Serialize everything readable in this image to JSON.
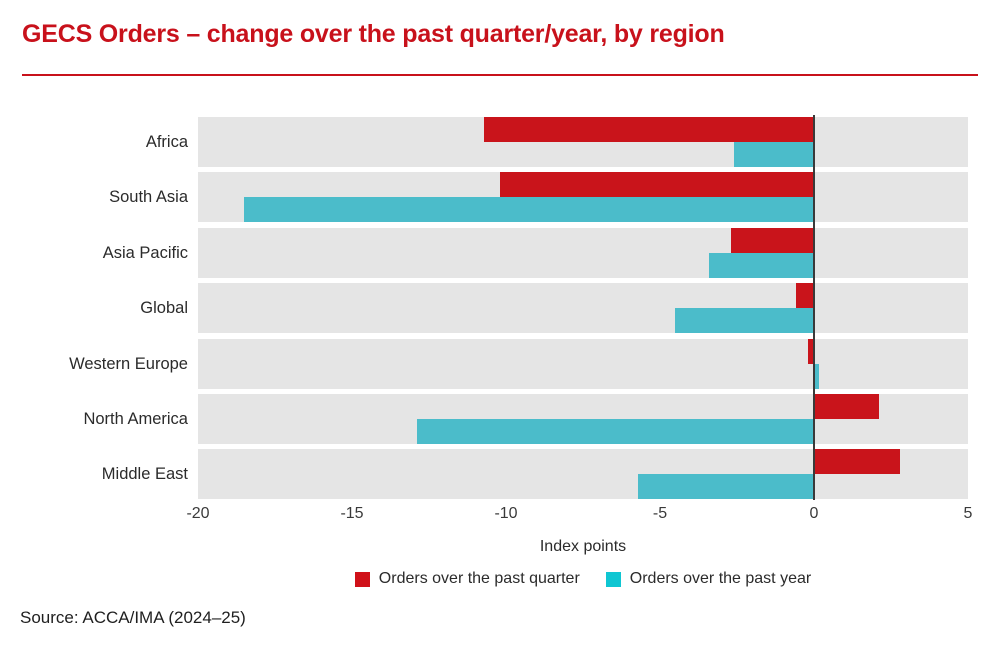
{
  "title": "GECS Orders – change over the past quarter/year, by region",
  "source": "Source: ACCA/IMA (2024–25)",
  "colors": {
    "accent_red": "#c8111b",
    "bar_red": "#c9141b",
    "bar_cyan": "#4bbcca",
    "legend_red": "#d01119",
    "legend_cyan": "#0fc6d2",
    "band_grey": "#e5e5e5",
    "zero_line": "#3a3a3a"
  },
  "chart_data": {
    "type": "bar",
    "orientation": "horizontal",
    "title": "GECS Orders – change over the past quarter/year, by region",
    "xlabel": "Index points",
    "xlim": [
      -20,
      5
    ],
    "xticks": [
      -20,
      -15,
      -10,
      -5,
      0,
      5
    ],
    "grid": "zero-baseline-only",
    "legend_position": "bottom-center",
    "categories": [
      "Africa",
      "South Asia",
      "Asia Pacific",
      "Global",
      "Western Europe",
      "North America",
      "Middle East"
    ],
    "series": [
      {
        "name": "Orders over the past quarter",
        "color": "#c9141b",
        "values": [
          -10.7,
          -10.2,
          -2.7,
          -0.6,
          -0.2,
          2.1,
          2.8
        ]
      },
      {
        "name": "Orders over the past year",
        "color": "#4bbcca",
        "values": [
          -2.6,
          -18.5,
          -3.4,
          -4.5,
          0.15,
          -12.9,
          -5.7
        ]
      }
    ]
  }
}
